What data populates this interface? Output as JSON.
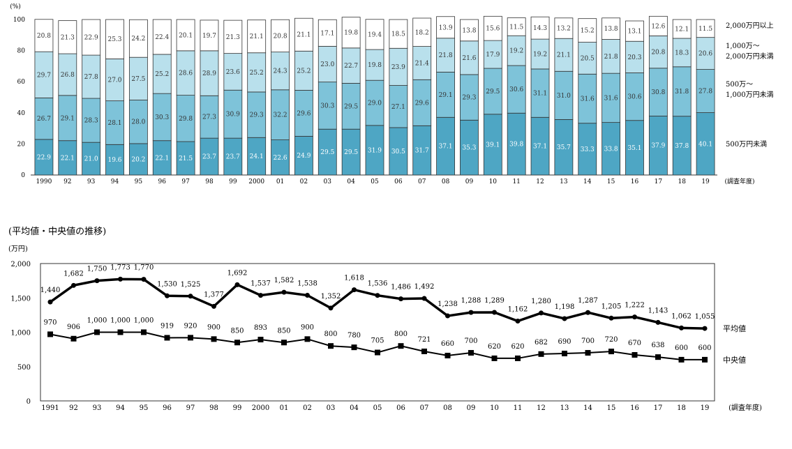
{
  "chart_data": [
    {
      "type": "bar",
      "stacked": true,
      "percent": true,
      "ylabel": "(%)",
      "xlabel": "(調査年度)",
      "ylim": [
        0,
        100
      ],
      "yticks": [
        0,
        20,
        40,
        60,
        80,
        100
      ],
      "categories": [
        "1990",
        "92",
        "93",
        "94",
        "95",
        "96",
        "97",
        "98",
        "99",
        "2000",
        "01",
        "02",
        "03",
        "04",
        "05",
        "06",
        "07",
        "08",
        "09",
        "10",
        "11",
        "12",
        "13",
        "14",
        "15",
        "16",
        "17",
        "18",
        "19"
      ],
      "series": [
        {
          "name": "500万円未満",
          "color": "#4ea6c4",
          "values": [
            22.9,
            22.1,
            21.0,
            19.6,
            20.2,
            22.1,
            21.5,
            23.7,
            23.7,
            24.1,
            22.6,
            24.9,
            29.5,
            29.5,
            31.9,
            30.5,
            31.7,
            37.1,
            35.3,
            39.1,
            39.8,
            37.1,
            35.7,
            33.3,
            33.8,
            35.1,
            37.9,
            37.8,
            40.1
          ]
        },
        {
          "name": "500万～\n1,000万円未満",
          "color": "#7ec3d9",
          "values": [
            26.7,
            29.1,
            28.3,
            28.1,
            28.0,
            30.3,
            29.8,
            27.3,
            30.9,
            29.3,
            32.2,
            29.6,
            30.3,
            29.5,
            29.0,
            27.1,
            29.6,
            29.1,
            29.3,
            29.5,
            30.6,
            31.1,
            31.0,
            31.6,
            31.6,
            30.6,
            30.8,
            31.8,
            27.8
          ]
        },
        {
          "name": "1,000万～\n2,000万円未満",
          "color": "#b9e0ec",
          "values": [
            29.7,
            26.8,
            27.8,
            27.0,
            27.5,
            25.2,
            28.6,
            28.9,
            23.6,
            25.2,
            24.3,
            25.2,
            23.0,
            22.7,
            19.8,
            23.9,
            21.4,
            21.8,
            21.6,
            17.9,
            19.2,
            19.2,
            21.1,
            20.5,
            21.8,
            20.3,
            20.8,
            18.3,
            20.6
          ]
        },
        {
          "name": "2,000万円以上",
          "color": "#ffffff",
          "values": [
            20.8,
            21.3,
            22.9,
            25.3,
            24.2,
            22.4,
            20.1,
            19.7,
            21.3,
            21.1,
            20.8,
            21.1,
            17.1,
            19.8,
            19.4,
            18.5,
            18.2,
            13.9,
            13.8,
            15.6,
            11.5,
            14.3,
            13.2,
            15.2,
            13.8,
            13.1,
            12.6,
            12.1,
            11.5
          ]
        }
      ]
    },
    {
      "type": "line",
      "title": "(平均値・中央値の推移)",
      "ylabel": "(万円)",
      "xlabel": "(調査年度)",
      "ylim": [
        0,
        2000
      ],
      "yticks": [
        0,
        500,
        1000,
        1500,
        2000
      ],
      "ytick_labels": [
        "0",
        "500",
        "1,000",
        "1,500",
        "2,000"
      ],
      "categories": [
        "1991",
        "92",
        "93",
        "94",
        "95",
        "96",
        "97",
        "98",
        "99",
        "2000",
        "01",
        "02",
        "03",
        "04",
        "05",
        "06",
        "07",
        "08",
        "09",
        "10",
        "11",
        "12",
        "13",
        "14",
        "15",
        "16",
        "17",
        "18",
        "19"
      ],
      "series": [
        {
          "name": "平均値",
          "marker": "circle",
          "values": [
            1440,
            1682,
            1750,
            1773,
            1770,
            1530,
            1525,
            1377,
            1692,
            1537,
            1582,
            1538,
            1352,
            1618,
            1536,
            1486,
            1492,
            1238,
            1288,
            1289,
            1162,
            1280,
            1198,
            1287,
            1205,
            1222,
            1143,
            1062,
            1055
          ],
          "labels": [
            "1,440",
            "1,682",
            "1,750",
            "1,773",
            "1,770",
            "1,530",
            "1,525",
            "1,377",
            "1,692",
            "1,537",
            "1,582",
            "1,538",
            "1,352",
            "1,618",
            "1,536",
            "1,486",
            "1,492",
            "1,238",
            "1,288",
            "1,289",
            "1,162",
            "1,280",
            "1,198",
            "1,287",
            "1,205",
            "1,222",
            "1,143",
            "1,062",
            "1,055"
          ]
        },
        {
          "name": "中央値",
          "marker": "square",
          "values": [
            970,
            906,
            1000,
            1000,
            1000,
            919,
            920,
            900,
            850,
            893,
            850,
            900,
            800,
            780,
            705,
            800,
            721,
            660,
            700,
            620,
            620,
            682,
            690,
            700,
            720,
            670,
            638,
            600,
            600
          ],
          "labels": [
            "970",
            "906",
            "1,000",
            "1,000",
            "1,000",
            "919",
            "920",
            "900",
            "850",
            "893",
            "850",
            "900",
            "800",
            "780",
            "705",
            "800",
            "721",
            "660",
            "700",
            "620",
            "620",
            "682",
            "690",
            "700",
            "720",
            "670",
            "638",
            "600",
            "600"
          ]
        }
      ]
    }
  ]
}
